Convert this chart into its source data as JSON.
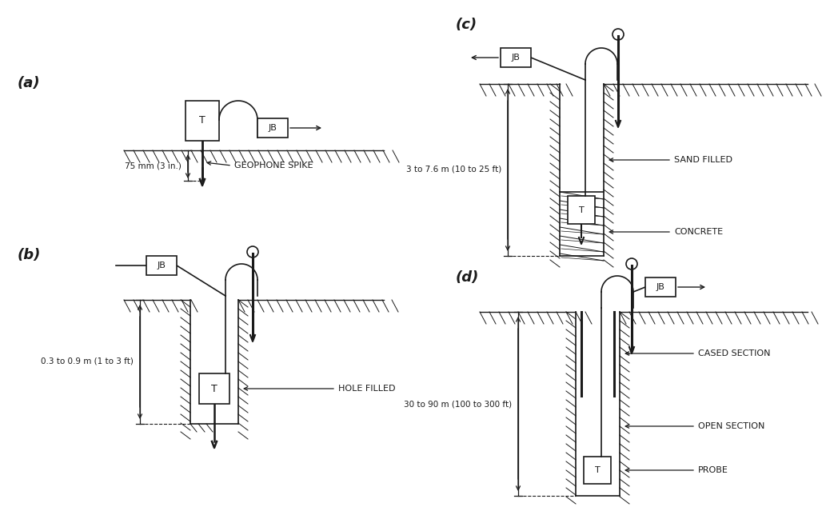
{
  "bg_color": "#ffffff",
  "line_color": "#1a1a1a",
  "label_a": "(a)",
  "label_b": "(b)",
  "label_c": "(c)",
  "label_d": "(d)",
  "text_geophone_spike": "GEOPHONE SPIKE",
  "text_75mm": "75 mm (3 in.)",
  "text_hole_filled": "HOLE FILLED",
  "text_03_09m": "0.3 to 0.9 m (1 to 3 ft)",
  "text_sand_filled": "SAND FILLED",
  "text_concrete": "CONCRETE",
  "text_3_76m": "3 to 7.6 m (10 to 25 ft)",
  "text_cased": "CASED SECTION",
  "text_open": "OPEN SECTION",
  "text_probe": "PROBE",
  "text_30_90m": "30 to 90 m (100 to 300 ft)",
  "label_T": "T",
  "label_JB": "JB"
}
